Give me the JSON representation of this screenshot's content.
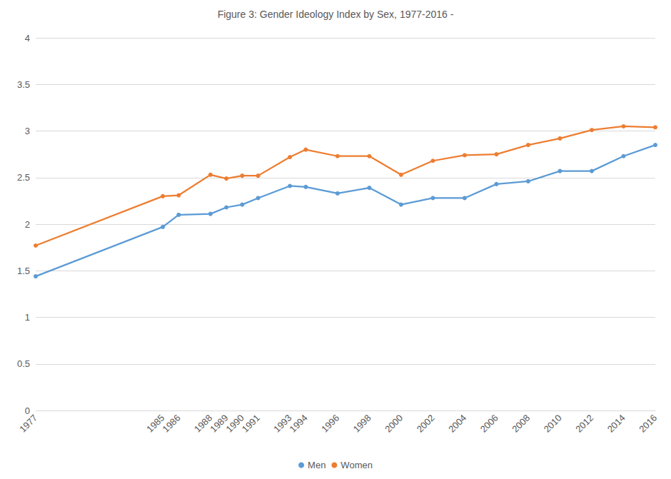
{
  "chart_data": {
    "type": "line",
    "title": "Figure 3: Gender Ideology Index by Sex, 1977-2016 -",
    "x": [
      1977,
      1985,
      1986,
      1988,
      1989,
      1990,
      1991,
      1993,
      1994,
      1996,
      1998,
      2000,
      2002,
      2004,
      2006,
      2008,
      2010,
      2012,
      2014,
      2016
    ],
    "series": [
      {
        "name": "Men",
        "color": "#5b9bd5",
        "values": [
          1.44,
          1.97,
          2.1,
          2.11,
          2.18,
          2.21,
          2.28,
          2.41,
          2.4,
          2.33,
          2.39,
          2.21,
          2.28,
          2.28,
          2.43,
          2.46,
          2.57,
          2.57,
          2.73,
          2.85
        ]
      },
      {
        "name": "Women",
        "color": "#ed7d31",
        "values": [
          1.77,
          2.3,
          2.31,
          2.53,
          2.49,
          2.52,
          2.52,
          2.72,
          2.8,
          2.73,
          2.73,
          2.53,
          2.68,
          2.74,
          2.75,
          2.85,
          2.92,
          3.01,
          3.05,
          3.04
        ]
      }
    ],
    "xlim": [
      1977,
      2016
    ],
    "xticks": [
      1977,
      1985,
      1986,
      1988,
      1989,
      1990,
      1991,
      1993,
      1994,
      1996,
      1998,
      2000,
      2002,
      2004,
      2006,
      2008,
      2010,
      2012,
      2014,
      2016
    ],
    "ylim": [
      0,
      4
    ],
    "yticks": [
      0,
      0.5,
      1,
      1.5,
      2,
      2.5,
      3,
      3.5,
      4
    ],
    "grid": true,
    "legend": "bottom",
    "marker": "circle"
  }
}
